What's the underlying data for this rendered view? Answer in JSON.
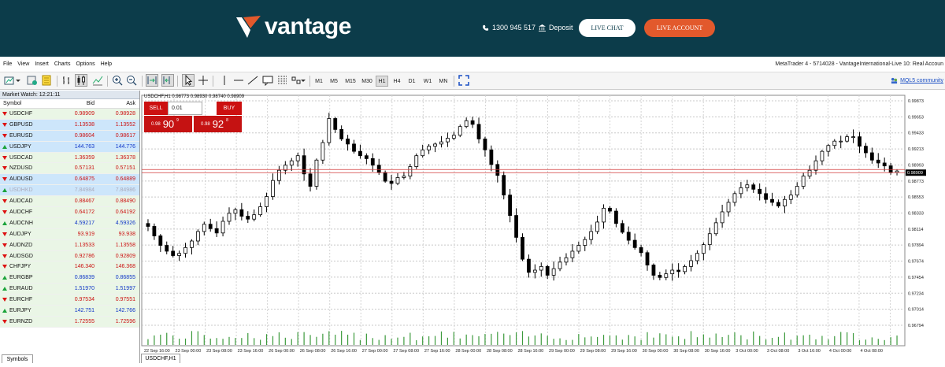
{
  "banner": {
    "logo_text": "vantage",
    "phone": "1300 945 517",
    "deposit": "Deposit",
    "live_chat": "LIVE CHAT",
    "live_account": "LIVE ACCOUNT"
  },
  "menu": [
    "File",
    "View",
    "Insert",
    "Charts",
    "Options",
    "Help"
  ],
  "window_title": "MetaTrader 4 - 5714028 - VantageInternational-Live 10: Real Accoun",
  "toolbar": {
    "timeframes": [
      "M1",
      "M5",
      "M15",
      "M30",
      "H1",
      "H4",
      "D1",
      "W1",
      "MN"
    ],
    "active_timeframe": "H1",
    "community": "MQL5 community"
  },
  "market_watch": {
    "title": "Market Watch: 12:21:11",
    "headers": {
      "symbol": "Symbol",
      "bid": "Bid",
      "ask": "Ask"
    },
    "tab": "Symbols",
    "rows": [
      {
        "symbol": "USDCHF",
        "bid": "0.98909",
        "ask": "0.98928",
        "dir": "down",
        "bg": "green",
        "color": "red"
      },
      {
        "symbol": "GBPUSD",
        "bid": "1.13538",
        "ask": "1.13552",
        "dir": "down",
        "bg": "blue",
        "color": "red"
      },
      {
        "symbol": "EURUSD",
        "bid": "0.98604",
        "ask": "0.98617",
        "dir": "down",
        "bg": "blue",
        "color": "red"
      },
      {
        "symbol": "USDJPY",
        "bid": "144.763",
        "ask": "144.776",
        "dir": "up",
        "bg": "blue",
        "color": "blue"
      },
      {
        "symbol": "USDCAD",
        "bid": "1.36359",
        "ask": "1.36378",
        "dir": "down",
        "bg": "green",
        "color": "red"
      },
      {
        "symbol": "NZDUSD",
        "bid": "0.57131",
        "ask": "0.57151",
        "dir": "down",
        "bg": "green",
        "color": "red"
      },
      {
        "symbol": "AUDUSD",
        "bid": "0.64875",
        "ask": "0.64889",
        "dir": "down",
        "bg": "blue",
        "color": "red"
      },
      {
        "symbol": "USDHKD",
        "bid": "7.84984",
        "ask": "7.84986",
        "dir": "up",
        "bg": "gray",
        "color": "gray"
      },
      {
        "symbol": "AUDCAD",
        "bid": "0.88467",
        "ask": "0.88490",
        "dir": "down",
        "bg": "green",
        "color": "red"
      },
      {
        "symbol": "AUDCHF",
        "bid": "0.64172",
        "ask": "0.64192",
        "dir": "down",
        "bg": "green",
        "color": "red"
      },
      {
        "symbol": "AUDCNH",
        "bid": "4.59217",
        "ask": "4.59326",
        "dir": "up",
        "bg": "green",
        "color": "blue"
      },
      {
        "symbol": "AUDJPY",
        "bid": "93.919",
        "ask": "93.938",
        "dir": "down",
        "bg": "green",
        "color": "red"
      },
      {
        "symbol": "AUDNZD",
        "bid": "1.13533",
        "ask": "1.13558",
        "dir": "down",
        "bg": "green",
        "color": "red"
      },
      {
        "symbol": "AUDSGD",
        "bid": "0.92786",
        "ask": "0.92809",
        "dir": "down",
        "bg": "green",
        "color": "red"
      },
      {
        "symbol": "CHFJPY",
        "bid": "146.340",
        "ask": "146.368",
        "dir": "down",
        "bg": "green",
        "color": "red"
      },
      {
        "symbol": "EURGBP",
        "bid": "0.86839",
        "ask": "0.86855",
        "dir": "up",
        "bg": "green",
        "color": "blue"
      },
      {
        "symbol": "EURAUD",
        "bid": "1.51970",
        "ask": "1.51997",
        "dir": "up",
        "bg": "green",
        "color": "blue"
      },
      {
        "symbol": "EURCHF",
        "bid": "0.97534",
        "ask": "0.97551",
        "dir": "down",
        "bg": "green",
        "color": "red"
      },
      {
        "symbol": "EURJPY",
        "bid": "142.751",
        "ask": "142.766",
        "dir": "up",
        "bg": "green",
        "color": "blue"
      },
      {
        "symbol": "EURNZD",
        "bid": "1.72555",
        "ask": "1.72596",
        "dir": "down",
        "bg": "green",
        "color": "red"
      }
    ]
  },
  "chart": {
    "info": "USDCHF,H1  0.98773 0.98930 0.98740 0.98909",
    "sell_label": "SELL",
    "buy_label": "BUY",
    "lot": "0.01",
    "sell_small": "0.98",
    "sell_big": "90",
    "sell_sup": "9",
    "buy_small": "0.98",
    "buy_big": "92",
    "buy_sup": "8",
    "tab": "USDCHF,H1",
    "current_price": "0.98909"
  },
  "chart_data": {
    "type": "candlestick",
    "symbol": "USDCHF",
    "timeframe": "H1",
    "y_ticks": [
      "0.99873",
      "0.99653",
      "0.99433",
      "0.99213",
      "0.98993",
      "0.98773",
      "0.98553",
      "0.98333",
      "0.98114",
      "0.97894",
      "0.97674",
      "0.97454",
      "0.97234",
      "0.97014",
      "0.96794"
    ],
    "ylim": [
      0.96794,
      0.99873
    ],
    "x_ticks": [
      "22 Sep 16:00",
      "23 Sep 00:00",
      "23 Sep 08:00",
      "23 Sep 16:00",
      "26 Sep 00:00",
      "26 Sep 08:00",
      "26 Sep 16:00",
      "27 Sep 00:00",
      "27 Sep 08:00",
      "27 Sep 16:00",
      "28 Sep 00:00",
      "28 Sep 08:00",
      "28 Sep 16:00",
      "29 Sep 00:00",
      "29 Sep 08:00",
      "29 Sep 16:00",
      "30 Sep 00:00",
      "30 Sep 08:00",
      "30 Sep 16:00",
      "3 Oct 00:00",
      "3 Oct 08:00",
      "3 Oct 16:00",
      "4 Oct 00:00",
      "4 Oct 08:00"
    ],
    "close_path": [
      0.9815,
      0.9802,
      0.9789,
      0.9781,
      0.9775,
      0.9778,
      0.9786,
      0.9795,
      0.9808,
      0.9818,
      0.9812,
      0.9806,
      0.9822,
      0.9833,
      0.9838,
      0.9829,
      0.9825,
      0.9831,
      0.9842,
      0.9856,
      0.9878,
      0.9892,
      0.9899,
      0.9905,
      0.9912,
      0.9887,
      0.987,
      0.9906,
      0.993,
      0.9963,
      0.9948,
      0.9935,
      0.9928,
      0.9918,
      0.9912,
      0.9908,
      0.9899,
      0.9889,
      0.9877,
      0.9874,
      0.9882,
      0.9884,
      0.9897,
      0.9912,
      0.992,
      0.9925,
      0.9928,
      0.9931,
      0.9936,
      0.994,
      0.9952,
      0.996,
      0.9955,
      0.9935,
      0.992,
      0.99,
      0.9885,
      0.9858,
      0.983,
      0.98,
      0.977,
      0.9752,
      0.9755,
      0.976,
      0.9748,
      0.9757,
      0.9766,
      0.9772,
      0.9781,
      0.9789,
      0.9797,
      0.9808,
      0.9821,
      0.984,
      0.9836,
      0.9819,
      0.9807,
      0.9796,
      0.9786,
      0.9779,
      0.9762,
      0.9748,
      0.9745,
      0.975,
      0.9755,
      0.9753,
      0.976,
      0.9768,
      0.9778,
      0.979,
      0.9805,
      0.982,
      0.9835,
      0.9848,
      0.986,
      0.9868,
      0.9872,
      0.9866,
      0.986,
      0.9852,
      0.9848,
      0.9843,
      0.9852,
      0.9858,
      0.987,
      0.9884,
      0.9892,
      0.9905,
      0.9918,
      0.9926,
      0.9932,
      0.9932,
      0.9938,
      0.9938,
      0.9925,
      0.9916,
      0.9906,
      0.9902,
      0.9898,
      0.9889,
      0.9891
    ]
  }
}
